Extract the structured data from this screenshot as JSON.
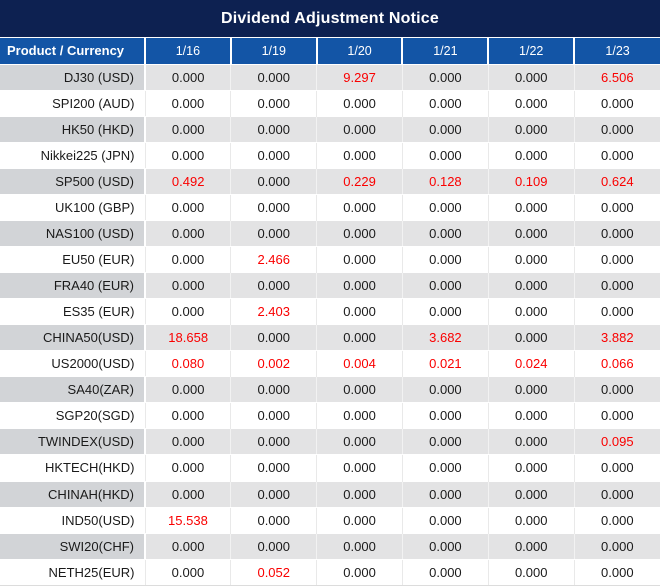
{
  "title": "Dividend Adjustment Notice",
  "chart_data": {
    "type": "table",
    "title": "Dividend Adjustment Notice",
    "columns": [
      "Product / Currency",
      "1/16",
      "1/19",
      "1/20",
      "1/21",
      "1/22",
      "1/23"
    ],
    "rows": [
      {
        "product": "DJ30 (USD)",
        "values": [
          "0.000",
          "0.000",
          "9.297",
          "0.000",
          "0.000",
          "6.506"
        ],
        "red": [
          false,
          false,
          true,
          false,
          false,
          true
        ]
      },
      {
        "product": "SPI200 (AUD)",
        "values": [
          "0.000",
          "0.000",
          "0.000",
          "0.000",
          "0.000",
          "0.000"
        ],
        "red": [
          false,
          false,
          false,
          false,
          false,
          false
        ]
      },
      {
        "product": "HK50 (HKD)",
        "values": [
          "0.000",
          "0.000",
          "0.000",
          "0.000",
          "0.000",
          "0.000"
        ],
        "red": [
          false,
          false,
          false,
          false,
          false,
          false
        ]
      },
      {
        "product": "Nikkei225 (JPN)",
        "values": [
          "0.000",
          "0.000",
          "0.000",
          "0.000",
          "0.000",
          "0.000"
        ],
        "red": [
          false,
          false,
          false,
          false,
          false,
          false
        ]
      },
      {
        "product": "SP500 (USD)",
        "values": [
          "0.492",
          "0.000",
          "0.229",
          "0.128",
          "0.109",
          "0.624"
        ],
        "red": [
          true,
          false,
          true,
          true,
          true,
          true
        ]
      },
      {
        "product": "UK100 (GBP)",
        "values": [
          "0.000",
          "0.000",
          "0.000",
          "0.000",
          "0.000",
          "0.000"
        ],
        "red": [
          false,
          false,
          false,
          false,
          false,
          false
        ]
      },
      {
        "product": "NAS100 (USD)",
        "values": [
          "0.000",
          "0.000",
          "0.000",
          "0.000",
          "0.000",
          "0.000"
        ],
        "red": [
          false,
          false,
          false,
          false,
          false,
          false
        ]
      },
      {
        "product": "EU50 (EUR)",
        "values": [
          "0.000",
          "2.466",
          "0.000",
          "0.000",
          "0.000",
          "0.000"
        ],
        "red": [
          false,
          true,
          false,
          false,
          false,
          false
        ]
      },
      {
        "product": "FRA40 (EUR)",
        "values": [
          "0.000",
          "0.000",
          "0.000",
          "0.000",
          "0.000",
          "0.000"
        ],
        "red": [
          false,
          false,
          false,
          false,
          false,
          false
        ]
      },
      {
        "product": "ES35 (EUR)",
        "values": [
          "0.000",
          "2.403",
          "0.000",
          "0.000",
          "0.000",
          "0.000"
        ],
        "red": [
          false,
          true,
          false,
          false,
          false,
          false
        ]
      },
      {
        "product": "CHINA50(USD)",
        "values": [
          "18.658",
          "0.000",
          "0.000",
          "3.682",
          "0.000",
          "3.882"
        ],
        "red": [
          true,
          false,
          false,
          true,
          false,
          true
        ]
      },
      {
        "product": "US2000(USD)",
        "values": [
          "0.080",
          "0.002",
          "0.004",
          "0.021",
          "0.024",
          "0.066"
        ],
        "red": [
          true,
          true,
          true,
          true,
          true,
          true
        ]
      },
      {
        "product": "SA40(ZAR)",
        "values": [
          "0.000",
          "0.000",
          "0.000",
          "0.000",
          "0.000",
          "0.000"
        ],
        "red": [
          false,
          false,
          false,
          false,
          false,
          false
        ]
      },
      {
        "product": "SGP20(SGD)",
        "values": [
          "0.000",
          "0.000",
          "0.000",
          "0.000",
          "0.000",
          "0.000"
        ],
        "red": [
          false,
          false,
          false,
          false,
          false,
          false
        ]
      },
      {
        "product": "TWINDEX(USD)",
        "values": [
          "0.000",
          "0.000",
          "0.000",
          "0.000",
          "0.000",
          "0.095"
        ],
        "red": [
          false,
          false,
          false,
          false,
          false,
          true
        ]
      },
      {
        "product": "HKTECH(HKD)",
        "values": [
          "0.000",
          "0.000",
          "0.000",
          "0.000",
          "0.000",
          "0.000"
        ],
        "red": [
          false,
          false,
          false,
          false,
          false,
          false
        ]
      },
      {
        "product": "CHINAH(HKD)",
        "values": [
          "0.000",
          "0.000",
          "0.000",
          "0.000",
          "0.000",
          "0.000"
        ],
        "red": [
          false,
          false,
          false,
          false,
          false,
          false
        ]
      },
      {
        "product": "IND50(USD)",
        "values": [
          "15.538",
          "0.000",
          "0.000",
          "0.000",
          "0.000",
          "0.000"
        ],
        "red": [
          true,
          false,
          false,
          false,
          false,
          false
        ]
      },
      {
        "product": "SWI20(CHF)",
        "values": [
          "0.000",
          "0.000",
          "0.000",
          "0.000",
          "0.000",
          "0.000"
        ],
        "red": [
          false,
          false,
          false,
          false,
          false,
          false
        ]
      },
      {
        "product": "NETH25(EUR)",
        "values": [
          "0.000",
          "0.052",
          "0.000",
          "0.000",
          "0.000",
          "0.000"
        ],
        "red": [
          false,
          true,
          false,
          false,
          false,
          false
        ]
      }
    ]
  },
  "colors": {
    "title_bg": "#0d2151",
    "header_bg": "#1355a6",
    "row_gray_label": "#d2d4d7",
    "row_gray_value": "#e3e3e4",
    "row_white": "#ffffff",
    "text": "#1a1a1a",
    "highlight_red": "#fa0000",
    "header_text": "#ffffff"
  }
}
